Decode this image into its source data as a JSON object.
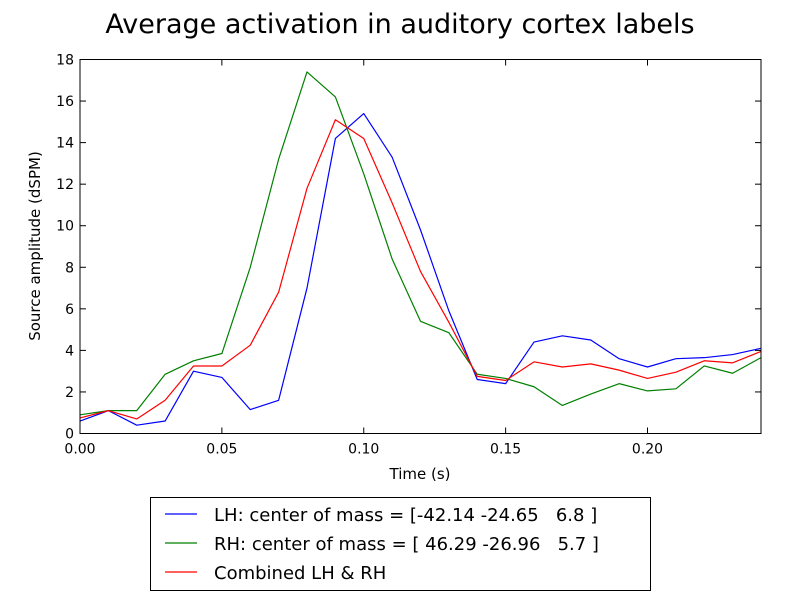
{
  "chart_data": {
    "type": "line",
    "title": "Average activation in auditory cortex labels",
    "xlabel": "Time (s)",
    "ylabel": "Source amplitude (dSPM)",
    "xlim": [
      0.0,
      0.24
    ],
    "ylim": [
      0,
      18
    ],
    "xticks": [
      0.0,
      0.05,
      0.1,
      0.15,
      0.2
    ],
    "xtick_labels": [
      "0.00",
      "0.05",
      "0.10",
      "0.15",
      "0.20"
    ],
    "yticks": [
      0,
      2,
      4,
      6,
      8,
      10,
      12,
      14,
      16,
      18
    ],
    "ytick_labels": [
      "0",
      "2",
      "4",
      "6",
      "8",
      "10",
      "12",
      "14",
      "16",
      "18"
    ],
    "grid": false,
    "legend_position": "below",
    "x": [
      0.0,
      0.01,
      0.02,
      0.03,
      0.04,
      0.05,
      0.06,
      0.07,
      0.08,
      0.09,
      0.1,
      0.11,
      0.12,
      0.13,
      0.14,
      0.15,
      0.16,
      0.17,
      0.18,
      0.19,
      0.2,
      0.21,
      0.22,
      0.23,
      0.24
    ],
    "series": [
      {
        "name": "LH: center of mass = [-42.14 -24.65   6.8 ]",
        "color": "#0000ff",
        "values": [
          0.6,
          1.1,
          0.4,
          0.6,
          3.0,
          2.7,
          1.15,
          1.6,
          7.0,
          14.2,
          15.4,
          13.3,
          9.8,
          5.9,
          2.6,
          2.4,
          4.4,
          4.7,
          4.5,
          3.6,
          3.2,
          3.6,
          3.65,
          3.8,
          4.1
        ]
      },
      {
        "name": "RH: center of mass = [ 46.29 -26.96   5.7 ]",
        "color": "#008000",
        "values": [
          0.9,
          1.1,
          1.1,
          2.85,
          3.5,
          3.85,
          8.0,
          13.2,
          17.4,
          16.2,
          12.5,
          8.4,
          5.4,
          4.85,
          2.85,
          2.65,
          2.25,
          1.35,
          1.9,
          2.4,
          2.05,
          2.15,
          3.25,
          2.9,
          3.65
        ]
      },
      {
        "name": "Combined LH & RH",
        "color": "#ff0000",
        "values": [
          0.75,
          1.1,
          0.7,
          1.6,
          3.25,
          3.25,
          4.25,
          6.8,
          11.8,
          15.1,
          14.2,
          11.1,
          7.8,
          5.35,
          2.75,
          2.55,
          3.45,
          3.2,
          3.35,
          3.05,
          2.65,
          2.95,
          3.5,
          3.4,
          3.95
        ]
      }
    ]
  }
}
